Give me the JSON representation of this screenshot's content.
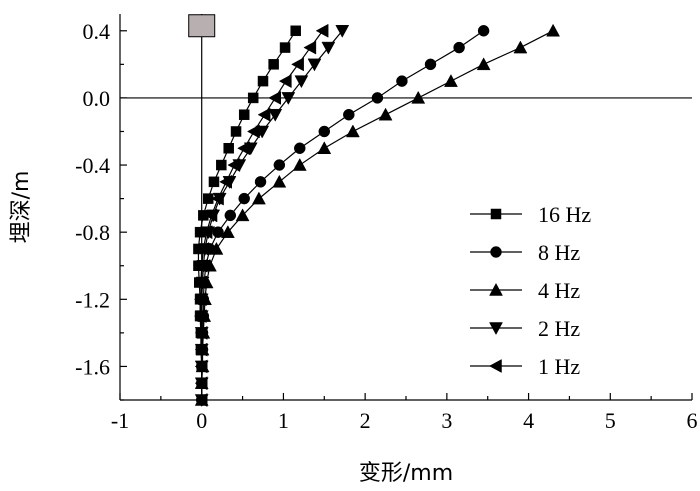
{
  "chart_data": {
    "type": "line",
    "xlabel": "变形/mm",
    "ylabel": "埋深/m",
    "xlim": [
      -1,
      6
    ],
    "ylim": [
      -1.8,
      0.5
    ],
    "xticks": [
      "-1",
      "0",
      "1",
      "2",
      "3",
      "4",
      "5",
      "6"
    ],
    "yticks": [
      "0.4",
      "0.0",
      "-0.4",
      "-0.8",
      "-1.2",
      "-1.6"
    ],
    "ytick_values": [
      0.4,
      0.0,
      -0.4,
      -0.8,
      -1.2,
      -1.6
    ],
    "grid": false,
    "legend_position": "lower-right",
    "series": [
      {
        "name": "16 Hz",
        "marker": "square",
        "points": [
          [
            1.15,
            0.4
          ],
          [
            1.02,
            0.3
          ],
          [
            0.88,
            0.2
          ],
          [
            0.75,
            0.1
          ],
          [
            0.63,
            0.0
          ],
          [
            0.52,
            -0.1
          ],
          [
            0.42,
            -0.2
          ],
          [
            0.33,
            -0.3
          ],
          [
            0.24,
            -0.4
          ],
          [
            0.15,
            -0.5
          ],
          [
            0.08,
            -0.6
          ],
          [
            0.02,
            -0.7
          ],
          [
            -0.02,
            -0.8
          ],
          [
            -0.04,
            -0.9
          ],
          [
            -0.04,
            -1.0
          ],
          [
            -0.03,
            -1.1
          ],
          [
            -0.02,
            -1.2
          ],
          [
            -0.02,
            -1.3
          ],
          [
            -0.01,
            -1.4
          ],
          [
            -0.01,
            -1.5
          ],
          [
            0.0,
            -1.6
          ],
          [
            0.0,
            -1.7
          ],
          [
            0.0,
            -1.8
          ]
        ]
      },
      {
        "name": "8 Hz",
        "marker": "circle",
        "points": [
          [
            3.45,
            0.4
          ],
          [
            3.15,
            0.3
          ],
          [
            2.8,
            0.2
          ],
          [
            2.45,
            0.1
          ],
          [
            2.15,
            0.0
          ],
          [
            1.8,
            -0.1
          ],
          [
            1.5,
            -0.2
          ],
          [
            1.2,
            -0.3
          ],
          [
            0.95,
            -0.4
          ],
          [
            0.72,
            -0.5
          ],
          [
            0.52,
            -0.6
          ],
          [
            0.35,
            -0.7
          ],
          [
            0.2,
            -0.8
          ],
          [
            0.1,
            -0.9
          ],
          [
            0.05,
            -1.0
          ],
          [
            0.03,
            -1.1
          ],
          [
            0.02,
            -1.2
          ],
          [
            0.02,
            -1.3
          ],
          [
            0.01,
            -1.4
          ],
          [
            0.01,
            -1.5
          ],
          [
            0.0,
            -1.6
          ],
          [
            0.0,
            -1.7
          ],
          [
            0.0,
            -1.8
          ]
        ]
      },
      {
        "name": "4 Hz",
        "marker": "triangle-up",
        "points": [
          [
            4.3,
            0.4
          ],
          [
            3.9,
            0.3
          ],
          [
            3.45,
            0.2
          ],
          [
            3.05,
            0.1
          ],
          [
            2.65,
            0.0
          ],
          [
            2.25,
            -0.1
          ],
          [
            1.85,
            -0.2
          ],
          [
            1.5,
            -0.3
          ],
          [
            1.2,
            -0.4
          ],
          [
            0.95,
            -0.5
          ],
          [
            0.7,
            -0.6
          ],
          [
            0.5,
            -0.7
          ],
          [
            0.32,
            -0.8
          ],
          [
            0.18,
            -0.9
          ],
          [
            0.1,
            -1.0
          ],
          [
            0.06,
            -1.1
          ],
          [
            0.04,
            -1.2
          ],
          [
            0.03,
            -1.3
          ],
          [
            0.02,
            -1.4
          ],
          [
            0.01,
            -1.5
          ],
          [
            0.01,
            -1.6
          ],
          [
            0.0,
            -1.7
          ],
          [
            0.0,
            -1.8
          ]
        ]
      },
      {
        "name": "2 Hz",
        "marker": "triangle-down",
        "points": [
          [
            1.72,
            0.4
          ],
          [
            1.55,
            0.3
          ],
          [
            1.38,
            0.2
          ],
          [
            1.22,
            0.1
          ],
          [
            1.06,
            0.0
          ],
          [
            0.9,
            -0.1
          ],
          [
            0.74,
            -0.2
          ],
          [
            0.6,
            -0.3
          ],
          [
            0.46,
            -0.4
          ],
          [
            0.34,
            -0.5
          ],
          [
            0.22,
            -0.6
          ],
          [
            0.14,
            -0.7
          ],
          [
            0.08,
            -0.8
          ],
          [
            0.04,
            -0.9
          ],
          [
            0.02,
            -1.0
          ],
          [
            0.01,
            -1.1
          ],
          [
            0.0,
            -1.2
          ],
          [
            0.0,
            -1.3
          ],
          [
            0.0,
            -1.4
          ],
          [
            0.0,
            -1.5
          ],
          [
            0.0,
            -1.6
          ],
          [
            0.0,
            -1.7
          ],
          [
            0.0,
            -1.8
          ]
        ]
      },
      {
        "name": "1 Hz",
        "marker": "triangle-left",
        "points": [
          [
            1.48,
            0.4
          ],
          [
            1.33,
            0.3
          ],
          [
            1.18,
            0.2
          ],
          [
            1.03,
            0.1
          ],
          [
            0.9,
            0.0
          ],
          [
            0.77,
            -0.1
          ],
          [
            0.64,
            -0.2
          ],
          [
            0.52,
            -0.3
          ],
          [
            0.4,
            -0.4
          ],
          [
            0.3,
            -0.5
          ],
          [
            0.2,
            -0.6
          ],
          [
            0.12,
            -0.7
          ],
          [
            0.06,
            -0.8
          ],
          [
            0.02,
            -0.9
          ],
          [
            0.0,
            -1.0
          ],
          [
            -0.01,
            -1.1
          ],
          [
            -0.01,
            -1.2
          ],
          [
            -0.01,
            -1.3
          ],
          [
            0.0,
            -1.4
          ],
          [
            0.0,
            -1.5
          ],
          [
            0.0,
            -1.6
          ],
          [
            0.0,
            -1.7
          ],
          [
            0.0,
            -1.8
          ]
        ]
      }
    ],
    "reference_marker": {
      "x": 0,
      "y": 0.43,
      "color": "#b8b0b0"
    }
  }
}
